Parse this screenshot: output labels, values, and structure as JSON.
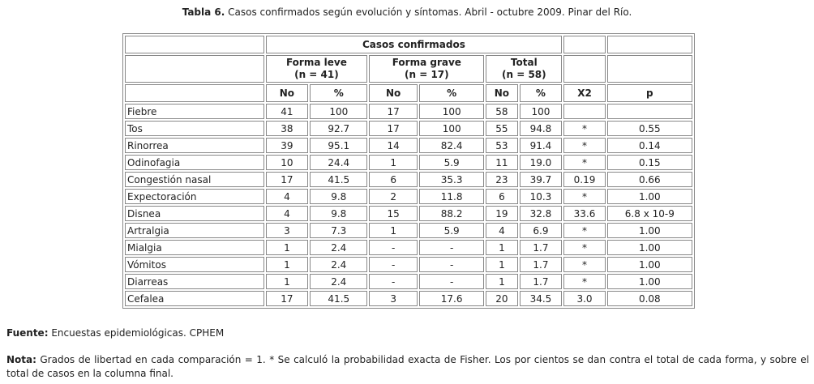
{
  "caption": {
    "label": "Tabla 6.",
    "text": "Casos confirmados según evolución y síntomas. Abril - octubre 2009. Pinar del Río."
  },
  "table": {
    "group_header": "Casos confirmados",
    "subgroups": [
      [
        "Forma leve",
        "(n = 41)"
      ],
      [
        "Forma grave",
        "(n = 17)"
      ],
      [
        "Total",
        "(n = 58)"
      ]
    ],
    "columns": [
      "No",
      "%",
      "No",
      "%",
      "No",
      "%",
      "X2",
      "p"
    ],
    "rows": [
      [
        "Fiebre",
        "41",
        "100",
        "17",
        "100",
        "58",
        "100",
        null,
        null
      ],
      [
        "Tos",
        "38",
        "92.7",
        "17",
        "100",
        "55",
        "94.8",
        "*",
        "0.55"
      ],
      [
        "Rinorrea",
        "39",
        "95.1",
        "14",
        "82.4",
        "53",
        "91.4",
        "*",
        "0.14"
      ],
      [
        "Odinofagia",
        "10",
        "24.4",
        "1",
        "5.9",
        "11",
        "19.0",
        "*",
        "0.15"
      ],
      [
        "Congestión nasal",
        "17",
        "41.5",
        "6",
        "35.3",
        "23",
        "39.7",
        "0.19",
        "0.66"
      ],
      [
        "Expectoración",
        "4",
        "9.8",
        "2",
        "11.8",
        "6",
        "10.3",
        "*",
        "1.00"
      ],
      [
        "Disnea",
        "4",
        "9.8",
        "15",
        "88.2",
        "19",
        "32.8",
        "33.6",
        "6.8 x 10-9"
      ],
      [
        "Artralgia",
        "3",
        "7.3",
        "1",
        "5.9",
        "4",
        "6.9",
        "*",
        "1.00"
      ],
      [
        "Mialgia",
        "1",
        "2.4",
        "-",
        "-",
        "1",
        "1.7",
        "*",
        "1.00"
      ],
      [
        "Vómitos",
        "1",
        "2.4",
        "-",
        "-",
        "1",
        "1.7",
        "*",
        "1.00"
      ],
      [
        "Diarreas",
        "1",
        "2.4",
        "-",
        "-",
        "1",
        "1.7",
        "*",
        "1.00"
      ],
      [
        "Cefalea",
        "17",
        "41.5",
        "3",
        "17.6",
        "20",
        "34.5",
        "3.0",
        "0.08"
      ]
    ]
  },
  "source": {
    "label": "Fuente:",
    "text": "Encuestas epidemiológicas. CPHEM"
  },
  "note": {
    "label": "Nota:",
    "text": "Grados de libertad en cada comparación = 1. * Se calculó la probabilidad exacta de Fisher. Los por cientos se dan contra el total de cada forma, y sobre el total de casos en la columna final."
  }
}
